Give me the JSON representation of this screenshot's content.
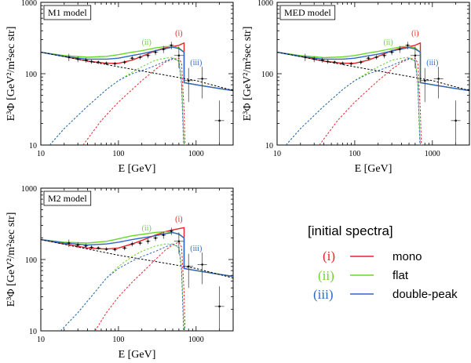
{
  "legend": {
    "title": "[initial spectra]",
    "entries": [
      {
        "roman": "(i)",
        "label": "mono",
        "color": "#e8232a"
      },
      {
        "roman": "(ii)",
        "label": "flat",
        "color": "#6bd62a"
      },
      {
        "roman": "(iii)",
        "label": "double-peak",
        "color": "#2f67c8"
      }
    ]
  },
  "colors": {
    "mono": "#e8232a",
    "flat": "#6bd62a",
    "double": "#2f67c8",
    "axis": "#000000"
  },
  "chart_data": [
    {
      "type": "line",
      "title": "M1 model",
      "xlabel": "E [GeV]",
      "ylabel": "E³Φ [GeV²/m²sec str]",
      "xscale": "log",
      "yscale": "log",
      "xlim": [
        10,
        3000
      ],
      "ylim": [
        10,
        1000
      ],
      "xticks": [
        10,
        100,
        1000
      ],
      "yticks": [
        10,
        100,
        1000
      ],
      "x_tick_labels": [
        "10",
        "100",
        "1000"
      ],
      "y_tick_labels": [
        "10",
        "100",
        "1000"
      ],
      "annotations": [
        {
          "text": "(i)",
          "x": 600,
          "y": 340,
          "color": "#e8232a"
        },
        {
          "text": "(ii)",
          "x": 230,
          "y": 255,
          "color": "#6bd62a"
        },
        {
          "text": "(iii)",
          "x": 1000,
          "y": 132,
          "color": "#2f67c8"
        }
      ],
      "series": [
        {
          "name": "total (i) mono",
          "color": "#e8232a",
          "style": "solid",
          "x": [
            10,
            20,
            40,
            70,
            100,
            150,
            200,
            300,
            400,
            500,
            600,
            700,
            700,
            1000,
            2000,
            3000
          ],
          "y": [
            200,
            175,
            150,
            140,
            140,
            155,
            175,
            210,
            230,
            240,
            250,
            270,
            75,
            70,
            62,
            58
          ]
        },
        {
          "name": "total (ii) flat",
          "color": "#6bd62a",
          "style": "solid",
          "x": [
            10,
            20,
            40,
            70,
            100,
            150,
            200,
            300,
            400,
            500,
            600,
            700,
            700,
            1000,
            2000,
            3000
          ],
          "y": [
            200,
            180,
            170,
            175,
            185,
            200,
            210,
            230,
            240,
            240,
            230,
            200,
            75,
            70,
            62,
            58
          ]
        },
        {
          "name": "total (iii) double-peak",
          "color": "#2f67c8",
          "style": "solid",
          "x": [
            10,
            20,
            40,
            70,
            100,
            150,
            200,
            300,
            400,
            500,
            600,
            700,
            700,
            1000,
            2000,
            3000
          ],
          "y": [
            200,
            175,
            160,
            160,
            165,
            180,
            190,
            210,
            225,
            235,
            225,
            200,
            75,
            70,
            62,
            58
          ]
        },
        {
          "name": "background",
          "color": "#000000",
          "style": "dashed",
          "x": [
            10,
            100,
            1000,
            3000
          ],
          "y": [
            200,
            125,
            80,
            58
          ]
        },
        {
          "name": "component (i) mono",
          "color": "#e8232a",
          "style": "dotted",
          "x": [
            35,
            60,
            100,
            150,
            200,
            300,
            400,
            500,
            600,
            650,
            700,
            720
          ],
          "y": [
            10,
            22,
            40,
            60,
            80,
            115,
            145,
            160,
            165,
            140,
            30,
            10
          ]
        },
        {
          "name": "component (ii) flat",
          "color": "#6bd62a",
          "style": "dotted",
          "x": [
            13,
            20,
            40,
            70,
            100,
            150,
            200,
            300,
            400,
            500,
            600,
            650,
            700
          ],
          "y": [
            10,
            17,
            35,
            60,
            80,
            105,
            125,
            155,
            165,
            170,
            150,
            80,
            10
          ]
        },
        {
          "name": "component (iii) double-peak",
          "color": "#2f67c8",
          "style": "dotted",
          "x": [
            13,
            20,
            40,
            70,
            100,
            150,
            200,
            300,
            400,
            500,
            600,
            650,
            690
          ],
          "y": [
            10,
            17,
            35,
            60,
            80,
            100,
            110,
            130,
            150,
            165,
            150,
            70,
            10
          ]
        }
      ],
      "data_points": {
        "x": [
          23,
          30,
          38,
          45,
          55,
          70,
          90,
          120,
          150,
          190,
          240,
          300,
          380,
          480,
          600,
          800,
          1200,
          2000
        ],
        "y": [
          170,
          160,
          155,
          148,
          145,
          140,
          138,
          145,
          165,
          170,
          180,
          200,
          220,
          250,
          180,
          80,
          85,
          22
        ],
        "yerr": [
          20,
          15,
          12,
          10,
          8,
          8,
          8,
          10,
          12,
          12,
          15,
          18,
          25,
          30,
          60,
          40,
          40,
          20
        ]
      }
    },
    {
      "type": "line",
      "title": "MED model",
      "xlabel": "E [GeV]",
      "ylabel": "E³Φ [GeV²/m²sec str]",
      "xscale": "log",
      "yscale": "log",
      "xlim": [
        10,
        3000
      ],
      "ylim": [
        10,
        1000
      ],
      "xticks": [
        10,
        100,
        1000
      ],
      "yticks": [
        10,
        100,
        1000
      ],
      "x_tick_labels": [
        "10",
        "100",
        "1000"
      ],
      "y_tick_labels": [
        "10",
        "100",
        "1000"
      ],
      "annotations": [
        {
          "text": "(i)",
          "x": 600,
          "y": 340,
          "color": "#e8232a"
        },
        {
          "text": "(ii)",
          "x": 270,
          "y": 255,
          "color": "#6bd62a"
        },
        {
          "text": "(iii)",
          "x": 1000,
          "y": 132,
          "color": "#2f67c8"
        }
      ],
      "series": [
        {
          "name": "total (i) mono",
          "color": "#e8232a",
          "style": "solid",
          "x": [
            10,
            20,
            40,
            70,
            100,
            150,
            200,
            300,
            400,
            500,
            600,
            700,
            700,
            1000,
            2000,
            3000
          ],
          "y": [
            200,
            175,
            150,
            140,
            140,
            155,
            175,
            210,
            230,
            240,
            250,
            270,
            75,
            70,
            62,
            58
          ]
        },
        {
          "name": "total (ii) flat",
          "color": "#6bd62a",
          "style": "solid",
          "x": [
            10,
            20,
            40,
            70,
            100,
            150,
            200,
            300,
            400,
            500,
            600,
            700,
            700,
            1000,
            2000,
            3000
          ],
          "y": [
            200,
            180,
            168,
            172,
            180,
            195,
            205,
            225,
            240,
            240,
            230,
            200,
            75,
            70,
            62,
            58
          ]
        },
        {
          "name": "total (iii) double-peak",
          "color": "#2f67c8",
          "style": "solid",
          "x": [
            10,
            20,
            40,
            70,
            100,
            150,
            200,
            300,
            400,
            500,
            600,
            700,
            700,
            1000,
            2000,
            3000
          ],
          "y": [
            200,
            175,
            160,
            160,
            165,
            178,
            188,
            208,
            222,
            232,
            222,
            200,
            75,
            70,
            62,
            58
          ]
        },
        {
          "name": "background",
          "color": "#000000",
          "style": "dashed",
          "x": [
            10,
            100,
            1000,
            3000
          ],
          "y": [
            200,
            125,
            80,
            58
          ]
        },
        {
          "name": "component (i) mono",
          "color": "#e8232a",
          "style": "dotted",
          "x": [
            35,
            60,
            100,
            150,
            200,
            300,
            400,
            500,
            600,
            650,
            700,
            720
          ],
          "y": [
            10,
            22,
            40,
            60,
            80,
            115,
            145,
            160,
            165,
            140,
            30,
            10
          ]
        },
        {
          "name": "component (ii) flat",
          "color": "#6bd62a",
          "style": "dotted",
          "x": [
            13,
            20,
            40,
            70,
            100,
            150,
            200,
            300,
            400,
            500,
            600,
            650,
            700
          ],
          "y": [
            10,
            17,
            35,
            60,
            80,
            105,
            125,
            155,
            165,
            170,
            150,
            80,
            10
          ]
        },
        {
          "name": "component (iii) double-peak",
          "color": "#2f67c8",
          "style": "dotted",
          "x": [
            13,
            20,
            40,
            70,
            100,
            150,
            200,
            300,
            400,
            500,
            600,
            650,
            690
          ],
          "y": [
            10,
            17,
            35,
            60,
            80,
            100,
            110,
            130,
            150,
            165,
            150,
            70,
            10
          ]
        }
      ],
      "data_points": {
        "x": [
          23,
          30,
          38,
          45,
          55,
          70,
          90,
          120,
          150,
          190,
          240,
          300,
          380,
          480,
          600,
          800,
          1200,
          2000
        ],
        "y": [
          170,
          160,
          155,
          148,
          145,
          140,
          138,
          145,
          165,
          170,
          180,
          200,
          220,
          250,
          180,
          80,
          85,
          22
        ],
        "yerr": [
          20,
          15,
          12,
          10,
          8,
          8,
          8,
          10,
          12,
          12,
          15,
          18,
          25,
          30,
          60,
          40,
          40,
          20
        ]
      }
    },
    {
      "type": "line",
      "title": "M2 model",
      "xlabel": "E [GeV]",
      "ylabel": "E³Φ [GeV²/m²sec str]",
      "xscale": "log",
      "yscale": "log",
      "xlim": [
        10,
        3000
      ],
      "ylim": [
        10,
        1000
      ],
      "xticks": [
        10,
        100,
        1000
      ],
      "yticks": [
        10,
        100,
        1000
      ],
      "x_tick_labels": [
        "10",
        "100",
        "1000"
      ],
      "y_tick_labels": [
        "10",
        "100",
        "1000"
      ],
      "annotations": [
        {
          "text": "(i)",
          "x": 600,
          "y": 340,
          "color": "#e8232a"
        },
        {
          "text": "(ii)",
          "x": 230,
          "y": 255,
          "color": "#6bd62a"
        },
        {
          "text": "(iii)",
          "x": 1000,
          "y": 132,
          "color": "#2f67c8"
        }
      ],
      "series": [
        {
          "name": "total (i) mono",
          "color": "#e8232a",
          "style": "solid",
          "x": [
            10,
            20,
            40,
            70,
            100,
            150,
            200,
            300,
            400,
            500,
            600,
            700,
            700,
            1000,
            2000,
            3000
          ],
          "y": [
            190,
            165,
            145,
            140,
            145,
            165,
            185,
            220,
            245,
            260,
            270,
            280,
            75,
            70,
            62,
            58
          ]
        },
        {
          "name": "total (ii) flat",
          "color": "#6bd62a",
          "style": "solid",
          "x": [
            10,
            20,
            40,
            70,
            100,
            150,
            200,
            300,
            400,
            500,
            600,
            700,
            700,
            1000,
            2000,
            3000
          ],
          "y": [
            190,
            175,
            170,
            180,
            195,
            215,
            225,
            240,
            245,
            240,
            225,
            200,
            75,
            70,
            62,
            58
          ]
        },
        {
          "name": "total (iii) double-peak",
          "color": "#2f67c8",
          "style": "solid",
          "x": [
            10,
            20,
            40,
            70,
            100,
            150,
            200,
            300,
            400,
            500,
            600,
            700,
            700,
            1000,
            2000,
            3000
          ],
          "y": [
            190,
            170,
            160,
            165,
            175,
            190,
            200,
            215,
            230,
            238,
            228,
            200,
            75,
            70,
            62,
            58
          ]
        },
        {
          "name": "background",
          "color": "#000000",
          "style": "dashed",
          "x": [
            10,
            100,
            1000,
            3000
          ],
          "y": [
            190,
            115,
            75,
            55
          ]
        },
        {
          "name": "component (i) mono",
          "color": "#e8232a",
          "style": "dotted",
          "x": [
            50,
            70,
            100,
            150,
            200,
            300,
            400,
            500,
            600,
            650,
            700,
            720
          ],
          "y": [
            10,
            18,
            30,
            48,
            65,
            100,
            135,
            160,
            175,
            150,
            35,
            10
          ]
        },
        {
          "name": "component (ii) flat",
          "color": "#6bd62a",
          "style": "dotted",
          "x": [
            18,
            30,
            50,
            70,
            100,
            150,
            200,
            300,
            400,
            500,
            600,
            650,
            700
          ],
          "y": [
            10,
            18,
            35,
            55,
            80,
            110,
            130,
            155,
            165,
            165,
            145,
            80,
            10
          ]
        },
        {
          "name": "component (iii) double-peak",
          "color": "#2f67c8",
          "style": "dotted",
          "x": [
            18,
            30,
            50,
            70,
            100,
            150,
            200,
            300,
            400,
            500,
            600,
            650,
            690
          ],
          "y": [
            10,
            18,
            35,
            55,
            75,
            95,
            110,
            130,
            150,
            165,
            150,
            70,
            10
          ]
        }
      ],
      "data_points": {
        "x": [
          23,
          30,
          38,
          45,
          55,
          70,
          90,
          120,
          150,
          190,
          240,
          300,
          380,
          480,
          600,
          800,
          1200,
          2000
        ],
        "y": [
          170,
          160,
          155,
          148,
          145,
          140,
          138,
          145,
          165,
          170,
          180,
          200,
          220,
          250,
          180,
          80,
          85,
          22
        ],
        "yerr": [
          20,
          15,
          12,
          10,
          8,
          8,
          8,
          10,
          12,
          12,
          15,
          18,
          25,
          30,
          60,
          40,
          40,
          20
        ]
      }
    }
  ]
}
